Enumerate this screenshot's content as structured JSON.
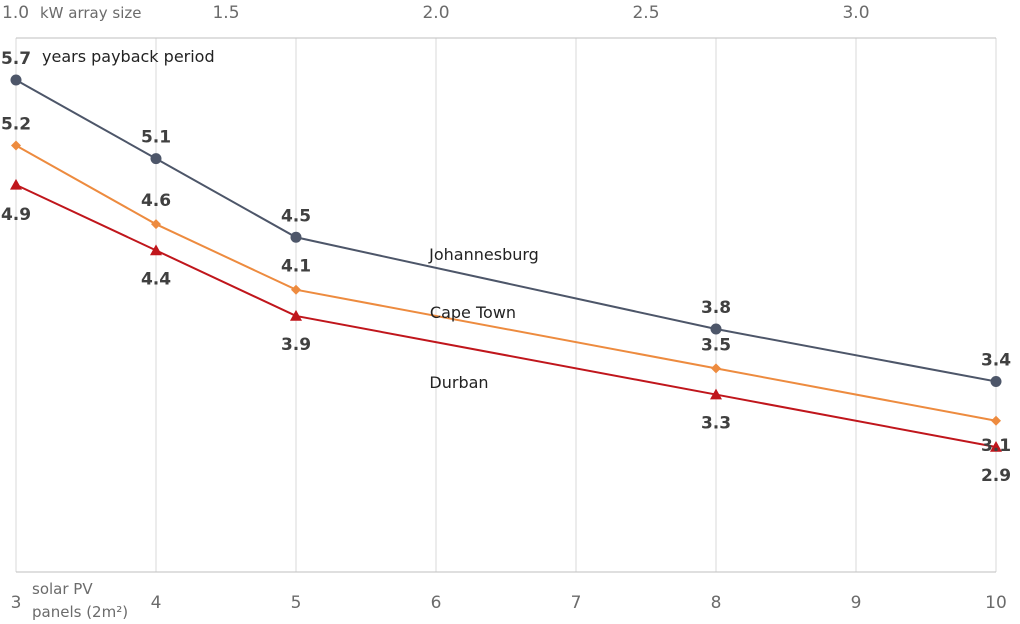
{
  "chart_data": {
    "type": "line",
    "ylabel": "years payback period",
    "xlabel_bottom": [
      "solar PV",
      "panels (2m²)"
    ],
    "xlabel_top": "kW array size",
    "x_ticks": [
      3,
      4,
      5,
      6,
      7,
      8,
      9,
      10
    ],
    "top_ticks": [
      {
        "panels": 3,
        "label": "1.0"
      },
      {
        "panels": 4.5,
        "label": "1.5"
      },
      {
        "panels": 6,
        "label": "2.0"
      },
      {
        "panels": 7.5,
        "label": "2.5"
      },
      {
        "panels": 9,
        "label": "3.0"
      }
    ],
    "xlim": [
      3,
      10
    ],
    "ylim": [
      2.0,
      6.0
    ],
    "grid": "vertical",
    "series": [
      {
        "name": "Johannesburg",
        "color": "#4d5669",
        "marker": "circle",
        "x": [
          3,
          4,
          5,
          8,
          10
        ],
        "values": [
          5.7,
          5.1,
          4.5,
          3.8,
          3.4
        ],
        "labels": [
          "5.7",
          "5.1",
          "4.5",
          "3.8",
          "3.4"
        ]
      },
      {
        "name": "Cape Town",
        "color": "#ed8b3f",
        "marker": "diamond",
        "x": [
          3,
          4,
          5,
          8,
          10
        ],
        "values": [
          5.2,
          4.6,
          4.1,
          3.5,
          3.1
        ],
        "labels": [
          "5.2",
          "4.6",
          "4.1",
          "3.5",
          "3.1"
        ]
      },
      {
        "name": "Durban",
        "color": "#c0161c",
        "marker": "triangle",
        "x": [
          3,
          4,
          5,
          8,
          10
        ],
        "values": [
          4.9,
          4.4,
          3.9,
          3.3,
          2.9
        ],
        "labels": [
          "4.9",
          "4.4",
          "3.9",
          "3.3",
          "2.9"
        ]
      }
    ]
  }
}
